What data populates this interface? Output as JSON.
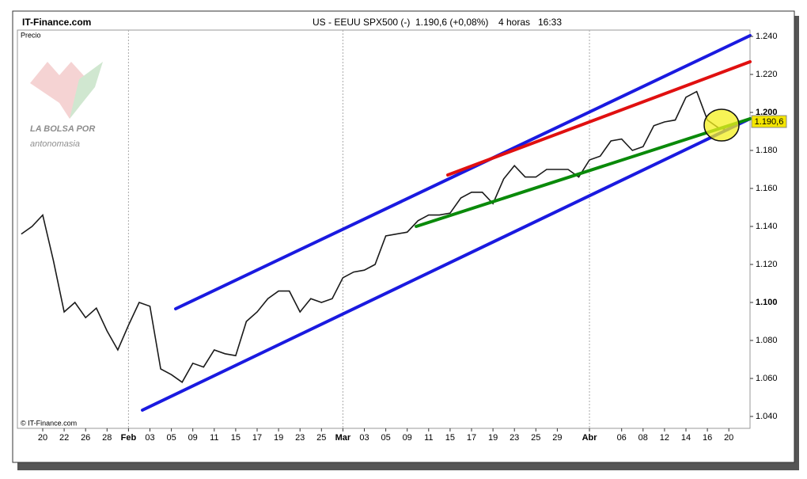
{
  "header": {
    "site": "IT-Finance.com",
    "instrument": "US - EEUU SPX500 (-)",
    "quote": "1.190,6 (+0,08%)",
    "timeframe": "4 horas",
    "time": "16:33"
  },
  "footer": {
    "copyright": "© IT-Finance.com"
  },
  "logo": {
    "line1": "LA BOLSA POR",
    "line2": "antonomasia"
  },
  "chart_data": {
    "type": "line",
    "y_label": "Precio",
    "categories": [
      null,
      null,
      "20",
      null,
      "22",
      null,
      "26",
      null,
      "28",
      null,
      "Feb",
      null,
      "03",
      null,
      "05",
      null,
      "09",
      null,
      "11",
      null,
      "15",
      null,
      "17",
      null,
      "19",
      null,
      "23",
      null,
      "25",
      null,
      "Mar",
      null,
      "03",
      null,
      "05",
      null,
      "09",
      null,
      "11",
      null,
      "15",
      null,
      "17",
      null,
      "19",
      null,
      "23",
      null,
      "25",
      null,
      "29",
      null,
      null,
      "Abr",
      null,
      null,
      "06",
      null,
      "08",
      null,
      "12",
      null,
      "14",
      null,
      "16",
      null,
      "20"
    ],
    "series": [
      {
        "name": "SPX500",
        "color": "#1a1a1a",
        "values": [
          1136,
          1140,
          1146,
          1122,
          1095,
          1100,
          1092,
          1097,
          1085,
          1075,
          1088,
          1100,
          1098,
          1065,
          1062,
          1058,
          1068,
          1066,
          1075,
          1073,
          1072,
          1090,
          1095,
          1102,
          1106,
          1106,
          1095,
          1102,
          1100,
          1102,
          1113,
          1116,
          1117,
          1120,
          1135,
          1136,
          1137,
          1143,
          1146,
          1146,
          1147,
          1155,
          1158,
          1158,
          1152,
          1165,
          1172,
          1166,
          1166,
          1170,
          1170,
          1170,
          1166,
          1175,
          1177,
          1185,
          1186,
          1180,
          1182,
          1193,
          1195,
          1196,
          1208,
          1211,
          1196,
          1192,
          1190.6
        ]
      }
    ],
    "last_price_label": "1.190,6",
    "ylim": [
      1040,
      1240
    ],
    "yticks": [
      {
        "value": 1040,
        "label": "1.040"
      },
      {
        "value": 1060,
        "label": "1.060"
      },
      {
        "value": 1080,
        "label": "1.080"
      },
      {
        "value": 1100,
        "label": "1.100"
      },
      {
        "value": 1120,
        "label": "1.120"
      },
      {
        "value": 1140,
        "label": "1.140"
      },
      {
        "value": 1160,
        "label": "1.160"
      },
      {
        "value": 1180,
        "label": "1.180"
      },
      {
        "value": 1200,
        "label": "1.200"
      },
      {
        "value": 1220,
        "label": "1.220"
      },
      {
        "value": 1240,
        "label": "1.240"
      }
    ]
  }
}
